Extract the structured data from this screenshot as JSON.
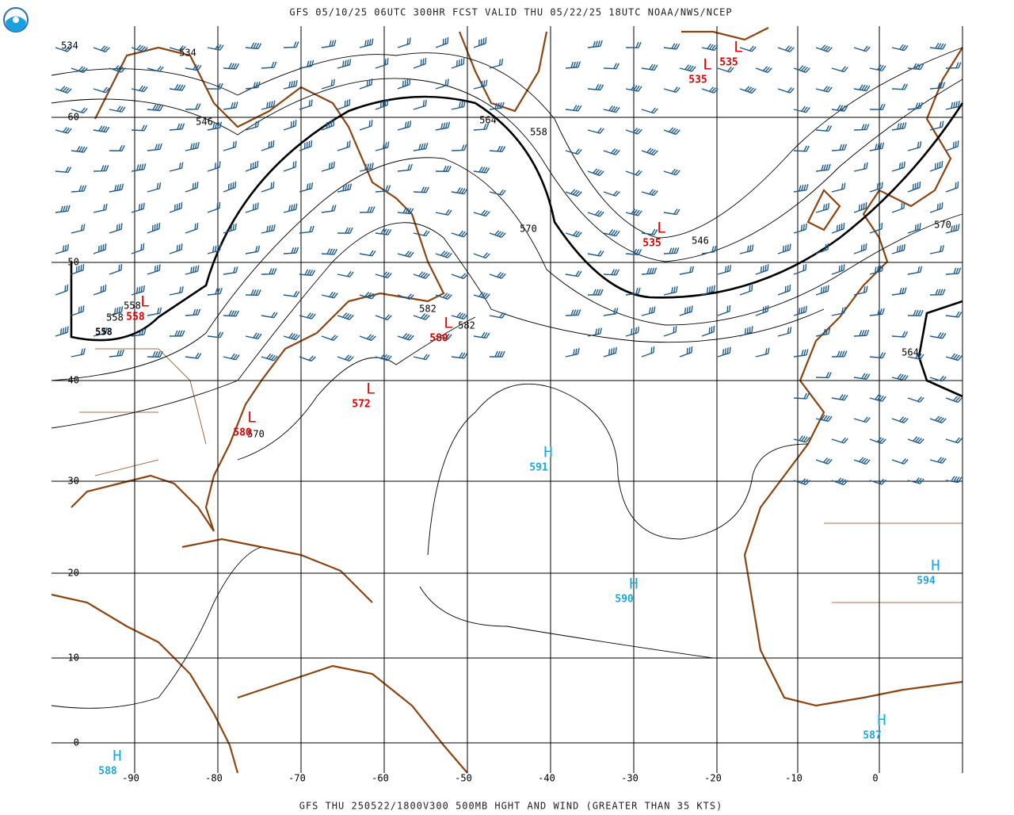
{
  "header": {
    "title": "GFS 05/10/25 06UTC 300HR FCST VALID THU 05/22/25 18UTC NOAA/NWS/NCEP"
  },
  "footer": {
    "caption": "GFS THU 250522/1800V300 500MB HGHT AND WIND (GREATER THAN 35 KTS)"
  },
  "grid": {
    "latitude_labels": [
      60,
      50,
      40,
      30,
      20,
      10,
      0
    ],
    "longitude_labels": [
      -90,
      -80,
      -70,
      -60,
      -50,
      -40,
      -30,
      -20,
      -10,
      0
    ]
  },
  "contour_labels": [
    534,
    534,
    546,
    564,
    558,
    570,
    546,
    570,
    558,
    558,
    582,
    582,
    564,
    570,
    558
  ],
  "pressure_centers": [
    {
      "symbol": "L",
      "value": 535
    },
    {
      "symbol": "L",
      "value": 535
    },
    {
      "symbol": "L",
      "value": 535
    },
    {
      "symbol": "L",
      "value": 558
    },
    {
      "symbol": "L",
      "value": 580
    },
    {
      "symbol": "L",
      "value": 572
    },
    {
      "symbol": "L",
      "value": 580
    },
    {
      "symbol": "H",
      "value": 591
    },
    {
      "symbol": "H",
      "value": 590
    },
    {
      "symbol": "H",
      "value": 594
    },
    {
      "symbol": "H",
      "value": 587
    },
    {
      "symbol": "H",
      "value": 588
    }
  ]
}
